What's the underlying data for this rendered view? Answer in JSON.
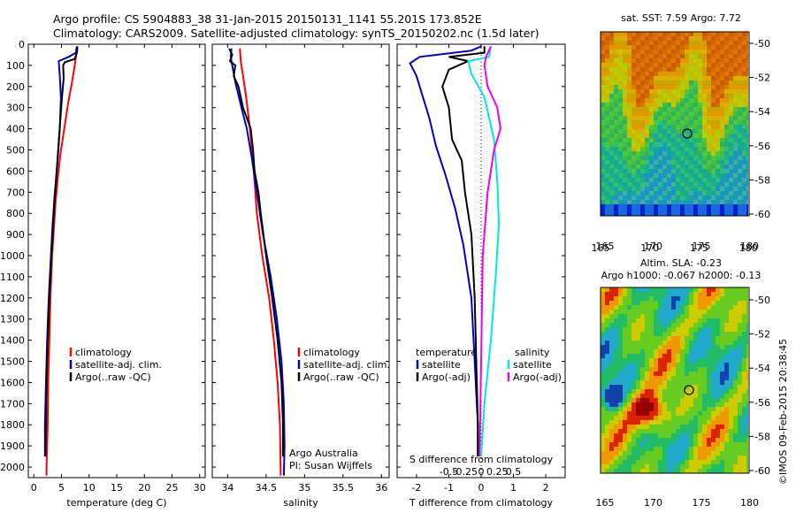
{
  "header": {
    "title_line1": "Argo profile: CS 5904883_38 31-Jan-2015 20150131_1141 55.201S 173.852E",
    "title_line2": "Climatology: CARS2009. Satellite-adjusted climatology: synTS_20150202.nc (1.5d later)"
  },
  "colors": {
    "climatology": "#ff0000",
    "satellite": "#0000cc",
    "argo": "#000000",
    "sal_satellite": "#00e5e5",
    "sal_argo": "#ee00ee"
  },
  "chart_data": [
    {
      "type": "line",
      "xlabel": "temperature (deg C)",
      "ylim": [
        2050,
        0
      ],
      "xlim": [
        -1,
        31
      ],
      "xticks": [
        0,
        5,
        10,
        15,
        20,
        25,
        30
      ],
      "yticks": [
        0,
        100,
        200,
        300,
        400,
        500,
        600,
        700,
        800,
        900,
        1000,
        1100,
        1200,
        1300,
        1400,
        1500,
        1600,
        1700,
        1800,
        1900,
        2000
      ],
      "legend": [
        "climatology",
        "satellite-adj. clim.",
        "Argo(..raw -QC)"
      ],
      "series": [
        {
          "name": "climatology",
          "color": "#ff0000",
          "points": [
            [
              7.7,
              20
            ],
            [
              7.6,
              60
            ],
            [
              7.4,
              100
            ],
            [
              6.9,
              180
            ],
            [
              6.2,
              280
            ],
            [
              5.5,
              400
            ],
            [
              4.8,
              520
            ],
            [
              4.3,
              640
            ],
            [
              3.9,
              760
            ],
            [
              3.6,
              880
            ],
            [
              3.3,
              1000
            ],
            [
              3.0,
              1200
            ],
            [
              2.8,
              1400
            ],
            [
              2.6,
              1600
            ],
            [
              2.5,
              1800
            ],
            [
              2.3,
              2000
            ],
            [
              2.3,
              2040
            ]
          ]
        },
        {
          "name": "satellite-adj. clim.",
          "color": "#0000cc",
          "points": [
            [
              7.8,
              10
            ],
            [
              7.6,
              40
            ],
            [
              6.3,
              60
            ],
            [
              4.5,
              80
            ],
            [
              4.7,
              150
            ],
            [
              4.9,
              250
            ],
            [
              4.7,
              400
            ],
            [
              4.3,
              550
            ],
            [
              3.8,
              700
            ],
            [
              3.4,
              850
            ],
            [
              3.1,
              1000
            ],
            [
              2.7,
              1200
            ],
            [
              2.4,
              1400
            ],
            [
              2.2,
              1600
            ],
            [
              2.0,
              1800
            ],
            [
              2.0,
              1950
            ]
          ]
        },
        {
          "name": "Argo(..raw -QC)",
          "color": "#000000",
          "points": [
            [
              7.9,
              10
            ],
            [
              7.8,
              40
            ],
            [
              7.4,
              70
            ],
            [
              5.6,
              85
            ],
            [
              5.3,
              100
            ],
            [
              5.4,
              160
            ],
            [
              5.1,
              250
            ],
            [
              4.8,
              350
            ],
            [
              4.4,
              500
            ],
            [
              4.0,
              650
            ],
            [
              3.6,
              800
            ],
            [
              3.2,
              1000
            ],
            [
              2.8,
              1200
            ],
            [
              2.5,
              1400
            ],
            [
              2.3,
              1600
            ],
            [
              2.2,
              1800
            ],
            [
              2.1,
              1950
            ]
          ]
        }
      ]
    },
    {
      "type": "line",
      "xlabel": "salinity",
      "ylim": [
        2050,
        0
      ],
      "xlim": [
        33.8,
        36.1
      ],
      "xticks": [
        34,
        34.5,
        35,
        35.5,
        36
      ],
      "legend": [
        "climatology",
        "satellite-adj. clim.",
        "Argo(..raw -QC)"
      ],
      "annotation": [
        "Argo Australia",
        "PI: Susan Wijffels"
      ],
      "series": [
        {
          "name": "climatology",
          "color": "#ff0000",
          "points": [
            [
              34.16,
              20
            ],
            [
              34.17,
              80
            ],
            [
              34.2,
              150
            ],
            [
              34.24,
              250
            ],
            [
              34.29,
              400
            ],
            [
              34.34,
              600
            ],
            [
              34.38,
              800
            ],
            [
              34.45,
              1000
            ],
            [
              34.54,
              1200
            ],
            [
              34.6,
              1400
            ],
            [
              34.65,
              1600
            ],
            [
              34.68,
              1800
            ],
            [
              34.69,
              2040
            ]
          ]
        },
        {
          "name": "satellite-adj. clim.",
          "color": "#0000cc",
          "points": [
            [
              34.05,
              20
            ],
            [
              34.04,
              60
            ],
            [
              34.06,
              100
            ],
            [
              34.1,
              180
            ],
            [
              34.18,
              300
            ],
            [
              34.25,
              400
            ],
            [
              34.32,
              550
            ],
            [
              34.38,
              700
            ],
            [
              34.46,
              900
            ],
            [
              34.56,
              1100
            ],
            [
              34.64,
              1300
            ],
            [
              34.7,
              1500
            ],
            [
              34.73,
              1700
            ],
            [
              34.74,
              1900
            ],
            [
              34.73,
              2040
            ]
          ]
        },
        {
          "name": "Argo(..raw -QC)",
          "color": "#000000",
          "points": [
            [
              34.02,
              20
            ],
            [
              34.06,
              50
            ],
            [
              34.03,
              80
            ],
            [
              34.1,
              100
            ],
            [
              34.08,
              150
            ],
            [
              34.14,
              200
            ],
            [
              34.2,
              300
            ],
            [
              34.3,
              400
            ],
            [
              34.33,
              500
            ],
            [
              34.35,
              600
            ],
            [
              34.4,
              700
            ],
            [
              34.43,
              800
            ],
            [
              34.5,
              1000
            ],
            [
              34.58,
              1200
            ],
            [
              34.65,
              1400
            ],
            [
              34.7,
              1600
            ],
            [
              34.72,
              1800
            ],
            [
              34.72,
              1950
            ]
          ]
        }
      ]
    },
    {
      "type": "line",
      "xlabel": "T difference from climatology",
      "xlabel_top": "S difference from climatology",
      "ylim": [
        2050,
        0
      ],
      "xlim": [
        -2.6,
        2.6
      ],
      "xticks_T": [
        -2,
        -1,
        0,
        1,
        2
      ],
      "xticks_S": [
        "-0.5",
        "-0.25",
        "0",
        "0.25",
        "0.5"
      ],
      "legend_T": {
        "title": "temperature",
        "items": [
          "satellite",
          "Argo(-adj)"
        ]
      },
      "legend_S": {
        "title": "salinity",
        "items": [
          "satellite",
          "Argo(-adj)"
        ]
      },
      "series": [
        {
          "name": "temperature satellite",
          "color": "#0000cc",
          "points": [
            [
              0,
              10
            ],
            [
              -0.3,
              30
            ],
            [
              -1.9,
              60
            ],
            [
              -2.2,
              90
            ],
            [
              -2.0,
              150
            ],
            [
              -1.8,
              250
            ],
            [
              -1.6,
              350
            ],
            [
              -1.4,
              480
            ],
            [
              -1.1,
              620
            ],
            [
              -0.8,
              780
            ],
            [
              -0.55,
              950
            ],
            [
              -0.3,
              1200
            ],
            [
              -0.2,
              1500
            ],
            [
              -0.1,
              1800
            ],
            [
              -0.1,
              1950
            ]
          ]
        },
        {
          "name": "temperature Argo(-adj)",
          "color": "#000000",
          "points": [
            [
              0.1,
              10
            ],
            [
              0.1,
              40
            ],
            [
              -1.0,
              60
            ],
            [
              -0.4,
              80
            ],
            [
              -1.0,
              120
            ],
            [
              -1.2,
              200
            ],
            [
              -1.0,
              300
            ],
            [
              -0.9,
              450
            ],
            [
              -0.6,
              550
            ],
            [
              -0.5,
              700
            ],
            [
              -0.3,
              900
            ],
            [
              -0.2,
              1200
            ],
            [
              -0.15,
              1500
            ],
            [
              -0.1,
              1800
            ],
            [
              -0.1,
              1950
            ]
          ]
        },
        {
          "name": "salinity satellite",
          "color": "#00e5e5",
          "points": [
            [
              0.3,
              10
            ],
            [
              0.25,
              60
            ],
            [
              -0.4,
              80
            ],
            [
              -0.3,
              140
            ],
            [
              0.1,
              250
            ],
            [
              0.4,
              450
            ],
            [
              0.5,
              650
            ],
            [
              0.55,
              850
            ],
            [
              0.45,
              1100
            ],
            [
              0.3,
              1400
            ],
            [
              0.1,
              1700
            ],
            [
              0.0,
              1950
            ]
          ]
        },
        {
          "name": "salinity Argo(-adj)",
          "color": "#ee00ee",
          "points": [
            [
              0.3,
              10
            ],
            [
              0.15,
              60
            ],
            [
              0.1,
              100
            ],
            [
              0.2,
              200
            ],
            [
              0.5,
              300
            ],
            [
              0.6,
              400
            ],
            [
              0.4,
              500
            ],
            [
              0.2,
              700
            ],
            [
              0.05,
              1000
            ],
            [
              0.0,
              1500
            ],
            [
              -0.05,
              1950
            ]
          ]
        }
      ]
    }
  ],
  "maps": {
    "sst_title": "sat. SST: 7.59 Argo: 7.72",
    "sla_title1": "Altim. SLA: -0.23",
    "sla_title2": "Argo h1000: -0.067 h2000: -0.13",
    "xticks": [
      "165",
      "170",
      "175",
      "180"
    ],
    "yticks": [
      "-50",
      "-52",
      "-54",
      "-56",
      "-58",
      "-60"
    ]
  },
  "footer": "©IMOS 09-Feb-2015 20:38:45"
}
